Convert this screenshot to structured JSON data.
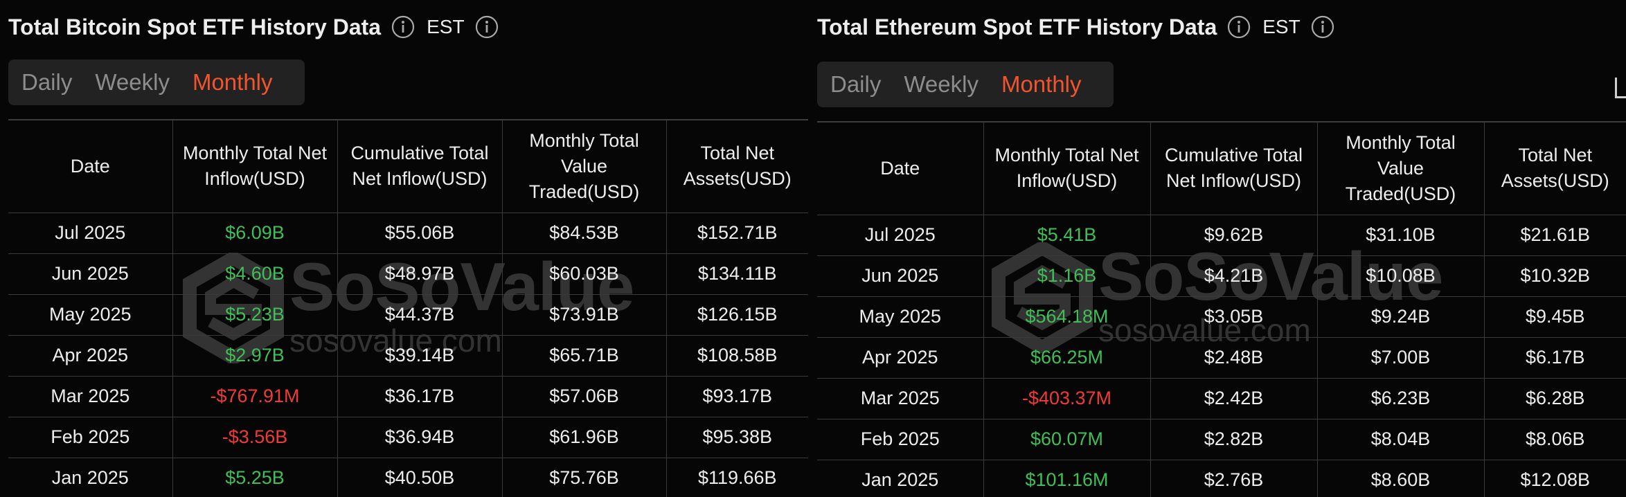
{
  "btc": {
    "title": "Total Bitcoin Spot ETF History Data",
    "timezone": "EST",
    "tabs": [
      "Daily",
      "Weekly",
      "Monthly"
    ],
    "active_tab": "Monthly",
    "columns": [
      "Date",
      "Monthly Total Net Inflow(USD)",
      "Cumulative Total Net Inflow(USD)",
      "Monthly Total Value Traded(USD)",
      "Total Net Assets(USD)"
    ],
    "rows": [
      {
        "date": "Jul 2025",
        "net_inflow": "$6.09B",
        "cumulative": "$55.06B",
        "value_traded": "$84.53B",
        "net_assets": "$152.71B"
      },
      {
        "date": "Jun 2025",
        "net_inflow": "$4.60B",
        "cumulative": "$48.97B",
        "value_traded": "$60.03B",
        "net_assets": "$134.11B"
      },
      {
        "date": "May 2025",
        "net_inflow": "$5.23B",
        "cumulative": "$44.37B",
        "value_traded": "$73.91B",
        "net_assets": "$126.15B"
      },
      {
        "date": "Apr 2025",
        "net_inflow": "$2.97B",
        "cumulative": "$39.14B",
        "value_traded": "$65.71B",
        "net_assets": "$108.58B"
      },
      {
        "date": "Mar 2025",
        "net_inflow": "-$767.91M",
        "cumulative": "$36.17B",
        "value_traded": "$57.06B",
        "net_assets": "$93.17B"
      },
      {
        "date": "Feb 2025",
        "net_inflow": "-$3.56B",
        "cumulative": "$36.94B",
        "value_traded": "$61.96B",
        "net_assets": "$95.38B"
      },
      {
        "date": "Jan 2025",
        "net_inflow": "$5.25B",
        "cumulative": "$40.50B",
        "value_traded": "$75.76B",
        "net_assets": "$119.66B"
      }
    ]
  },
  "eth": {
    "title": "Total Ethereum Spot ETF History Data",
    "timezone": "EST",
    "tabs": [
      "Daily",
      "Weekly",
      "Monthly"
    ],
    "active_tab": "Monthly",
    "columns": [
      "Date",
      "Monthly Total Net Inflow(USD)",
      "Cumulative Total Net Inflow(USD)",
      "Monthly Total Value Traded(USD)",
      "Total Net Assets(USD)"
    ],
    "rows": [
      {
        "date": "Jul 2025",
        "net_inflow": "$5.41B",
        "cumulative": "$9.62B",
        "value_traded": "$31.10B",
        "net_assets": "$21.61B"
      },
      {
        "date": "Jun 2025",
        "net_inflow": "$1.16B",
        "cumulative": "$4.21B",
        "value_traded": "$10.08B",
        "net_assets": "$10.32B"
      },
      {
        "date": "May 2025",
        "net_inflow": "$564.18M",
        "cumulative": "$3.05B",
        "value_traded": "$9.24B",
        "net_assets": "$9.45B"
      },
      {
        "date": "Apr 2025",
        "net_inflow": "$66.25M",
        "cumulative": "$2.48B",
        "value_traded": "$7.00B",
        "net_assets": "$6.17B"
      },
      {
        "date": "Mar 2025",
        "net_inflow": "-$403.37M",
        "cumulative": "$2.42B",
        "value_traded": "$6.23B",
        "net_assets": "$6.28B"
      },
      {
        "date": "Feb 2025",
        "net_inflow": "$60.07M",
        "cumulative": "$2.82B",
        "value_traded": "$8.04B",
        "net_assets": "$8.06B"
      },
      {
        "date": "Jan 2025",
        "net_inflow": "$101.16M",
        "cumulative": "$2.76B",
        "value_traded": "$8.60B",
        "net_assets": "$12.08B"
      }
    ]
  },
  "watermark": {
    "brand": "SoSoValue",
    "url": "sosovalue.com"
  },
  "icons": {
    "info": "info-icon",
    "export": "export-icon",
    "logo": "sosovalue-logo-icon"
  },
  "colors": {
    "positive": "#3fbf55",
    "negative": "#ef3b36",
    "active_tab": "#f2542d",
    "background": "#060606"
  }
}
